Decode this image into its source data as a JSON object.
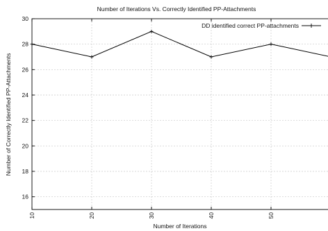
{
  "chart_data": {
    "type": "line",
    "title": "Number of Iterations Vs. Correctly Identified PP-Attachments",
    "xlabel": "Number of Iterations",
    "ylabel": "Number of Correctly Identified PP-Attachments",
    "xlim": [
      10,
      60
    ],
    "ylim": [
      15,
      30
    ],
    "x_ticks": [
      10,
      20,
      30,
      40,
      50,
      60
    ],
    "y_ticks": [
      16,
      18,
      20,
      22,
      24,
      26,
      28,
      30
    ],
    "grid": true,
    "legend_position": "top-right",
    "series": [
      {
        "name": "DD identified correct PP-attachments",
        "color": "#000000",
        "marker": "plus",
        "x": [
          10,
          20,
          30,
          40,
          50,
          60
        ],
        "y": [
          28,
          27,
          29,
          27,
          28,
          27
        ]
      }
    ]
  }
}
